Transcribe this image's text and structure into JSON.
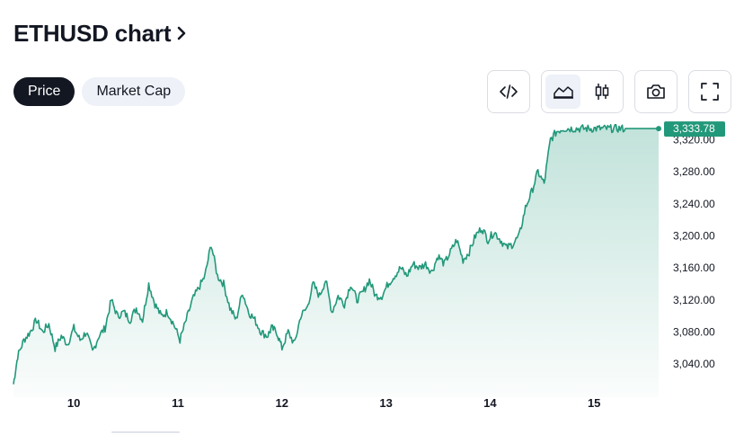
{
  "header": {
    "title": "ETHUSD chart"
  },
  "tabs": [
    {
      "label": "Price",
      "active": true
    },
    {
      "label": "Market Cap",
      "active": false
    }
  ],
  "toolbar": {
    "embed_icon": "code-icon",
    "line_icon": "area-chart-icon",
    "candle_icon": "candlestick-icon",
    "snapshot_icon": "camera-icon",
    "fullscreen_icon": "fullscreen-icon"
  },
  "colors": {
    "line": "#22987a",
    "badge": "#22987a",
    "fill_top": "#22987a",
    "text": "#131722"
  },
  "chart_data": {
    "type": "area",
    "symbol": "ETHUSD",
    "last_price_label": "3,333.78",
    "y_ticks": [
      "3,040.00",
      "3,080.00",
      "3,120.00",
      "3,160.00",
      "3,200.00",
      "3,240.00",
      "3,280.00",
      "3,320.00"
    ],
    "y_tick_values": [
      3040,
      3080,
      3120,
      3160,
      3200,
      3240,
      3280,
      3320
    ],
    "x_ticks": [
      "10",
      "11",
      "12",
      "13",
      "14",
      "15"
    ],
    "x_tick_values": [
      10,
      11,
      12,
      13,
      14,
      15
    ],
    "ylim": [
      3010,
      3335
    ],
    "xlim": [
      9.42,
      15.62
    ],
    "x": [
      9.42,
      9.46,
      9.52,
      9.58,
      9.64,
      9.7,
      9.76,
      9.82,
      9.88,
      9.94,
      10.0,
      10.06,
      10.12,
      10.18,
      10.24,
      10.3,
      10.36,
      10.42,
      10.48,
      10.54,
      10.6,
      10.66,
      10.72,
      10.78,
      10.84,
      10.9,
      10.96,
      11.02,
      11.08,
      11.14,
      11.2,
      11.26,
      11.32,
      11.38,
      11.44,
      11.5,
      11.56,
      11.62,
      11.68,
      11.74,
      11.8,
      11.86,
      11.9,
      11.95,
      12.0,
      12.06,
      12.12,
      12.18,
      12.24,
      12.3,
      12.36,
      12.42,
      12.48,
      12.54,
      12.6,
      12.66,
      12.72,
      12.78,
      12.84,
      12.9,
      12.96,
      13.02,
      13.08,
      13.14,
      13.2,
      13.26,
      13.32,
      13.38,
      13.44,
      13.5,
      13.56,
      13.62,
      13.68,
      13.74,
      13.8,
      13.86,
      13.92,
      13.98,
      14.04,
      14.1,
      14.16,
      14.22,
      14.28,
      14.34,
      14.4,
      14.46,
      14.52,
      14.58,
      14.64,
      14.7,
      14.76,
      14.82,
      14.88,
      14.94,
      15.0,
      15.06,
      15.12,
      15.18,
      15.24,
      15.3,
      15.36,
      15.42,
      15.48,
      15.54,
      15.58,
      15.62
    ],
    "y": [
      3015,
      3050,
      3070,
      3080,
      3095,
      3080,
      3090,
      3060,
      3075,
      3065,
      3085,
      3070,
      3080,
      3055,
      3075,
      3085,
      3120,
      3100,
      3105,
      3095,
      3110,
      3095,
      3140,
      3115,
      3100,
      3105,
      3090,
      3070,
      3095,
      3120,
      3135,
      3150,
      3190,
      3150,
      3140,
      3110,
      3095,
      3130,
      3105,
      3095,
      3080,
      3075,
      3085,
      3080,
      3060,
      3080,
      3065,
      3100,
      3110,
      3140,
      3125,
      3145,
      3105,
      3125,
      3115,
      3140,
      3120,
      3130,
      3145,
      3125,
      3125,
      3140,
      3150,
      3160,
      3150,
      3165,
      3160,
      3165,
      3155,
      3175,
      3165,
      3180,
      3195,
      3170,
      3180,
      3200,
      3210,
      3195,
      3205,
      3195,
      3185,
      3190,
      3200,
      3235,
      3255,
      3280,
      3265,
      3320,
      3330,
      3333.78,
      3333.78,
      3333.78,
      3333.78,
      3333.78,
      3333.78,
      3333.78,
      3333.78,
      3333.78,
      3333.78,
      3333.78,
      3333.78,
      3333.78,
      3333.78,
      3333.78,
      3333.78,
      3333.78
    ],
    "grid": false,
    "legend": "none"
  }
}
